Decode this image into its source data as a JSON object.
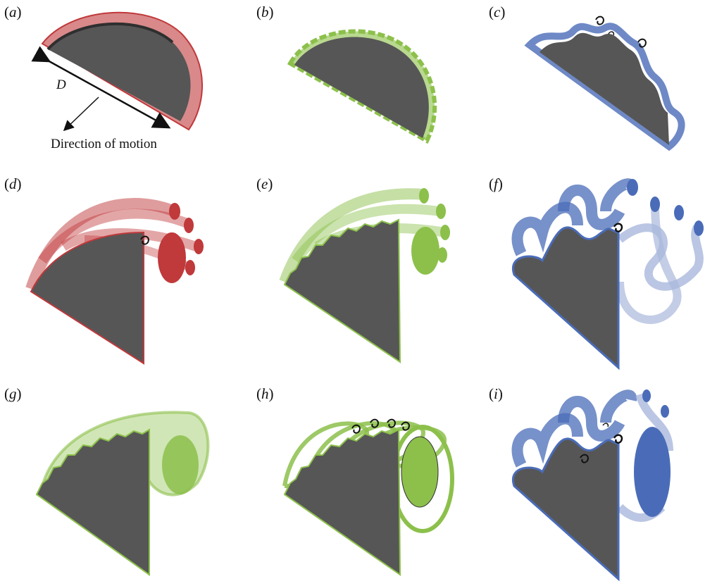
{
  "figure": {
    "panels": [
      {
        "id": "a",
        "open": "(",
        "letter": "a",
        "close": ")"
      },
      {
        "id": "b",
        "open": "(",
        "letter": "b",
        "close": ")"
      },
      {
        "id": "c",
        "open": "(",
        "letter": "c",
        "close": ")"
      },
      {
        "id": "d",
        "open": "(",
        "letter": "d",
        "close": ")"
      },
      {
        "id": "e",
        "open": "(",
        "letter": "e",
        "close": ")"
      },
      {
        "id": "f",
        "open": "(",
        "letter": "f",
        "close": ")"
      },
      {
        "id": "g",
        "open": "(",
        "letter": "g",
        "close": ")"
      },
      {
        "id": "h",
        "open": "(",
        "letter": "h",
        "close": ")"
      },
      {
        "id": "i",
        "open": "(",
        "letter": "i",
        "close": ")"
      }
    ],
    "annotations": {
      "diameter": "D",
      "motion": "Direction of motion"
    },
    "colors": {
      "plate": "#565656",
      "plate_edge": "#2f2f2f",
      "red": "#c0393b",
      "red_light": "#d9898a",
      "green": "#8cc04b",
      "green_light": "#b9d98f",
      "blue": "#4a6cb8",
      "blue_light": "#a9b8dc",
      "vortex": "#111111"
    }
  }
}
